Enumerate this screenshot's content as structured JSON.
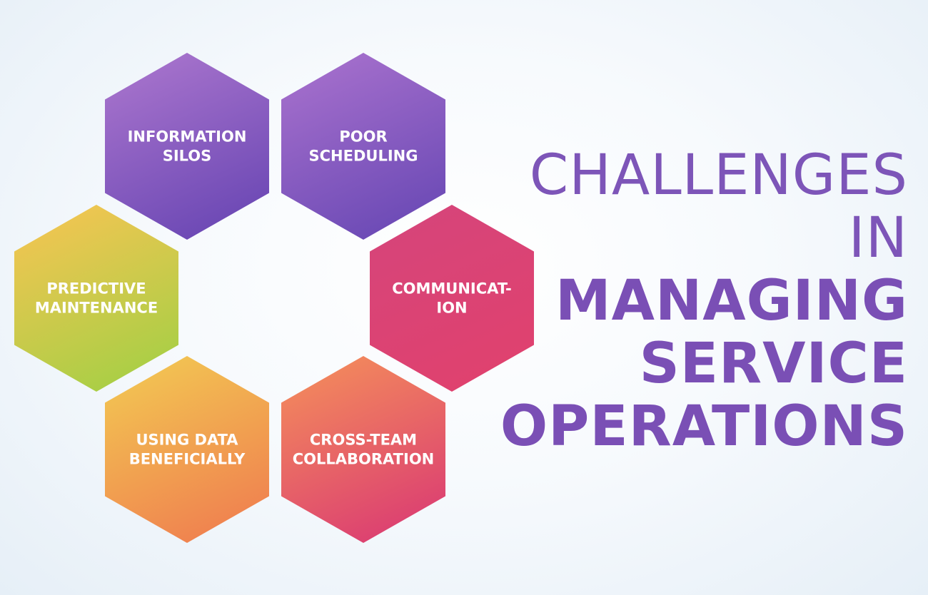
{
  "hexagons": [
    {
      "id": "information-silos",
      "lines": [
        "INFORMATION",
        "SILOS"
      ],
      "gradient": [
        "#a773cc",
        "#6a47b4"
      ]
    },
    {
      "id": "poor-scheduling",
      "lines": [
        "POOR",
        "SCHEDULING"
      ],
      "gradient": [
        "#a56fcc",
        "#6a49b5"
      ]
    },
    {
      "id": "communication",
      "lines": [
        "COMMUNICAT-",
        "ION"
      ],
      "gradient": [
        "#d6457a",
        "#e0416e"
      ]
    },
    {
      "id": "cross-team-collaboration",
      "lines": [
        "CROSS-TEAM",
        "COLLABORATION"
      ],
      "gradient": [
        "#f38a5c",
        "#db3d72"
      ]
    },
    {
      "id": "using-data-beneficially",
      "lines": [
        "USING DATA",
        "BENEFICIALLY"
      ],
      "gradient": [
        "#f2c552",
        "#f07f4f"
      ]
    },
    {
      "id": "predictive-maintenance",
      "lines": [
        "PREDICTIVE",
        "MAINTENANCE"
      ],
      "gradient": [
        "#f2c552",
        "#a6cf45"
      ]
    }
  ],
  "title": {
    "line1": "CHALLENGES",
    "line2": "IN",
    "line3": "MANAGING",
    "line4": "SERVICE",
    "line5": "OPERATIONS"
  },
  "colors": {
    "title": "#7a4fb5",
    "hex_text": "#ffffff"
  }
}
